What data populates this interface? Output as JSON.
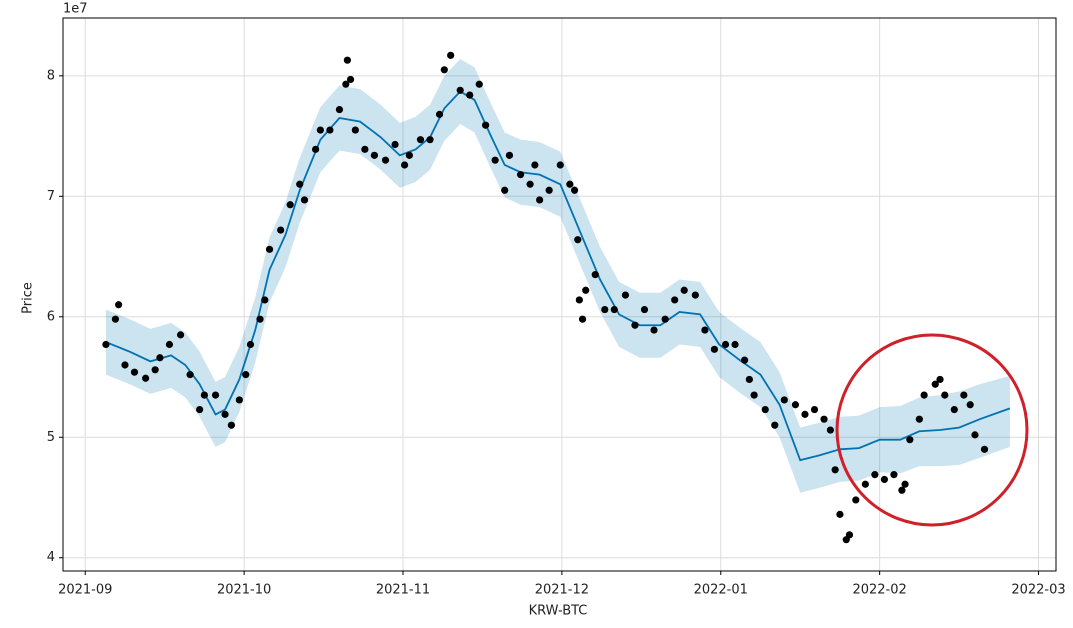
{
  "chart_data": {
    "type": "forecast",
    "offset_label": "1e7",
    "y_label": "Price",
    "x_label": "KRW-BTC",
    "grid": true,
    "xlim": [
      -0.14,
      6.11
    ],
    "ylim": [
      3.89,
      8.48
    ],
    "xticks": [
      {
        "value": 0,
        "label": "2021-09"
      },
      {
        "value": 1,
        "label": "2021-10"
      },
      {
        "value": 2,
        "label": "2021-11"
      },
      {
        "value": 3,
        "label": "2021-12"
      },
      {
        "value": 4,
        "label": "2022-01"
      },
      {
        "value": 5,
        "label": "2022-02"
      },
      {
        "value": 6,
        "label": "2022-03"
      }
    ],
    "yticks": [
      4,
      5,
      6,
      7,
      8
    ],
    "series": [
      {
        "type": "scatter",
        "color": "#000000",
        "x": [
          0.13,
          0.19,
          0.21,
          0.25,
          0.31,
          0.38,
          0.44,
          0.47,
          0.53,
          0.6,
          0.66,
          0.72,
          0.75,
          0.82,
          0.88,
          0.92,
          0.97,
          1.01,
          1.04,
          1.1,
          1.13,
          1.16,
          1.23,
          1.29,
          1.35,
          1.38,
          1.45,
          1.48,
          1.54,
          1.6,
          1.64,
          1.65,
          1.67,
          1.7,
          1.76,
          1.82,
          1.89,
          1.95,
          2.01,
          2.04,
          2.11,
          2.17,
          2.23,
          2.26,
          2.3,
          2.36,
          2.42,
          2.48,
          2.52,
          2.58,
          2.64,
          2.67,
          2.74,
          2.8,
          2.83,
          2.86,
          2.92,
          2.99,
          3.05,
          3.08,
          3.1,
          3.11,
          3.13,
          3.15,
          3.21,
          3.27,
          3.33,
          3.4,
          3.46,
          3.52,
          3.58,
          3.65,
          3.71,
          3.77,
          3.84,
          3.9,
          3.96,
          4.03,
          4.09,
          4.15,
          4.18,
          4.21,
          4.28,
          4.34,
          4.4,
          4.47,
          4.53,
          4.59,
          4.65,
          4.69,
          4.72,
          4.75,
          4.79,
          4.81,
          4.85,
          4.91,
          4.97,
          5.03,
          5.09,
          5.14,
          5.16,
          5.19,
          5.25,
          5.28,
          5.35,
          5.38,
          5.41,
          5.47,
          5.53,
          5.57,
          5.6,
          5.66
        ],
        "values": [
          5.77,
          5.98,
          6.1,
          5.6,
          5.54,
          5.49,
          5.56,
          5.66,
          5.77,
          5.85,
          5.52,
          5.23,
          5.35,
          5.35,
          5.19,
          5.1,
          5.31,
          5.52,
          5.77,
          5.98,
          6.14,
          6.56,
          6.72,
          6.93,
          7.1,
          6.97,
          7.39,
          7.55,
          7.55,
          7.72,
          7.93,
          8.13,
          7.97,
          7.55,
          7.39,
          7.34,
          7.3,
          7.43,
          7.26,
          7.34,
          7.47,
          7.47,
          7.68,
          8.05,
          8.17,
          7.88,
          7.84,
          7.93,
          7.59,
          7.3,
          7.05,
          7.34,
          7.18,
          7.1,
          7.26,
          6.97,
          7.05,
          7.26,
          7.1,
          7.05,
          6.64,
          6.14,
          5.98,
          6.22,
          6.35,
          6.06,
          6.06,
          6.18,
          5.93,
          6.06,
          5.89,
          5.98,
          6.14,
          6.22,
          6.18,
          5.89,
          5.73,
          5.77,
          5.77,
          5.64,
          5.48,
          5.35,
          5.23,
          5.1,
          5.31,
          5.27,
          5.19,
          5.23,
          5.15,
          5.06,
          4.73,
          4.36,
          4.15,
          4.19,
          4.48,
          4.61,
          4.69,
          4.65,
          4.69,
          4.56,
          4.61,
          4.98,
          5.15,
          5.35,
          5.44,
          5.48,
          5.35,
          5.23,
          5.35,
          5.27,
          5.02,
          4.9
        ]
      },
      {
        "type": "line",
        "color": "#0072b2",
        "band_color": "#0072b2",
        "x": [
          0.13,
          0.28,
          0.41,
          0.54,
          0.63,
          0.72,
          0.82,
          0.88,
          0.97,
          1.07,
          1.16,
          1.26,
          1.35,
          1.48,
          1.6,
          1.73,
          1.86,
          1.98,
          2.08,
          2.17,
          2.26,
          2.36,
          2.45,
          2.55,
          2.64,
          2.74,
          2.86,
          2.99,
          3.11,
          3.24,
          3.36,
          3.49,
          3.62,
          3.74,
          3.87,
          3.99,
          4.12,
          4.25,
          4.37,
          4.5,
          4.62,
          4.75,
          4.87,
          5.0,
          5.13,
          5.25,
          5.38,
          5.5,
          5.63,
          5.82
        ],
        "values": [
          5.79,
          5.71,
          5.63,
          5.68,
          5.6,
          5.44,
          5.19,
          5.23,
          5.48,
          5.89,
          6.39,
          6.68,
          7.05,
          7.47,
          7.65,
          7.62,
          7.49,
          7.34,
          7.39,
          7.49,
          7.73,
          7.87,
          7.8,
          7.51,
          7.26,
          7.2,
          7.18,
          7.1,
          6.72,
          6.31,
          6.02,
          5.93,
          5.93,
          6.04,
          6.02,
          5.77,
          5.64,
          5.52,
          5.27,
          4.81,
          4.85,
          4.9,
          4.91,
          4.98,
          4.98,
          5.05,
          5.06,
          5.08,
          5.15,
          5.24
        ],
        "lower": [
          5.52,
          5.44,
          5.36,
          5.41,
          5.33,
          5.17,
          4.92,
          4.96,
          5.21,
          5.62,
          6.12,
          6.41,
          6.78,
          7.2,
          7.38,
          7.35,
          7.22,
          7.07,
          7.12,
          7.22,
          7.46,
          7.6,
          7.53,
          7.24,
          6.99,
          6.93,
          6.91,
          6.83,
          6.45,
          6.04,
          5.75,
          5.66,
          5.66,
          5.77,
          5.75,
          5.5,
          5.37,
          5.25,
          5.0,
          4.54,
          4.58,
          4.63,
          4.64,
          4.71,
          4.7,
          4.76,
          4.76,
          4.77,
          4.83,
          4.92
        ],
        "upper": [
          6.06,
          5.98,
          5.9,
          5.95,
          5.87,
          5.71,
          5.46,
          5.5,
          5.75,
          6.16,
          6.66,
          6.95,
          7.32,
          7.74,
          7.92,
          7.89,
          7.76,
          7.61,
          7.66,
          7.76,
          8.0,
          8.14,
          8.07,
          7.78,
          7.53,
          7.47,
          7.45,
          7.37,
          6.99,
          6.58,
          6.29,
          6.2,
          6.2,
          6.31,
          6.29,
          6.04,
          5.91,
          5.79,
          5.54,
          5.08,
          5.12,
          5.17,
          5.18,
          5.25,
          5.26,
          5.33,
          5.35,
          5.38,
          5.44,
          5.51
        ]
      }
    ]
  }
}
